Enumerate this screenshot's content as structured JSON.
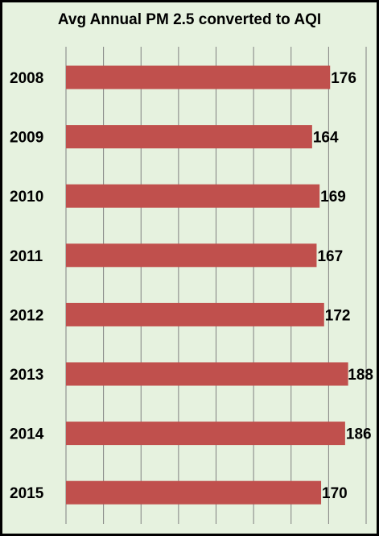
{
  "chart_data": {
    "type": "bar",
    "orientation": "horizontal",
    "title": "Avg Annual PM 2.5  converted to AQI",
    "xlabel": "",
    "ylabel": "",
    "categories": [
      "2008",
      "2009",
      "2010",
      "2011",
      "2012",
      "2013",
      "2014",
      "2015"
    ],
    "values": [
      176,
      164,
      169,
      167,
      172,
      188,
      186,
      170
    ],
    "xlim": [
      0,
      200
    ],
    "grid": true,
    "legend": "none",
    "data_labels": true,
    "colors": {
      "bar": "#c0504d",
      "background": "#e6f2df",
      "gridline": "#808080",
      "border": "#000000"
    }
  }
}
